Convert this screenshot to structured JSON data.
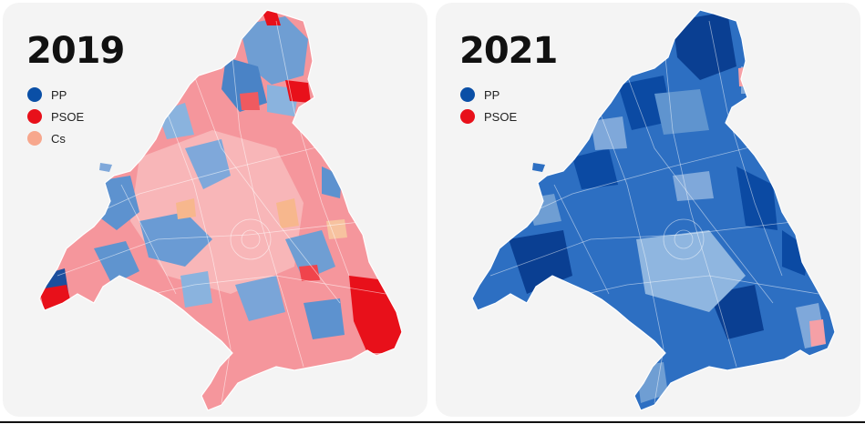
{
  "maps": [
    {
      "year": "2019",
      "legend": [
        {
          "label": "PP",
          "color": "#0a4fa6"
        },
        {
          "label": "PSOE",
          "color": "#e8101a"
        },
        {
          "label": "Cs",
          "color": "#f7a78d"
        }
      ],
      "base_color": "#f59a9f"
    },
    {
      "year": "2021",
      "legend": [
        {
          "label": "PP",
          "color": "#0a4fa6"
        },
        {
          "label": "PSOE",
          "color": "#e8101a"
        }
      ],
      "base_color": "#2d6fc2"
    }
  ]
}
